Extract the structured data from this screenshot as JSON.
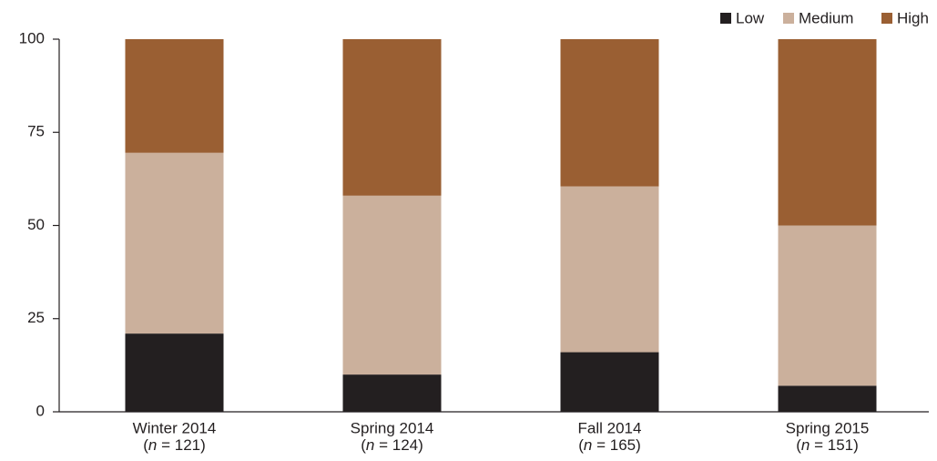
{
  "chart_data": {
    "type": "stacked_bar",
    "categories": [
      "Winter 2014",
      "Spring 2014",
      "Fall 2014",
      "Spring 2015"
    ],
    "category_notes": [
      "(n = 121)",
      "(n = 124)",
      "(n = 165)",
      "(n = 151)"
    ],
    "series": [
      {
        "name": "Low",
        "color": "#231f20",
        "values": [
          21,
          10,
          16,
          7
        ]
      },
      {
        "name": "Medium",
        "color": "#cbb09c",
        "values": [
          48.5,
          48,
          44.5,
          43
        ]
      },
      {
        "name": "High",
        "color": "#9a5f33",
        "values": [
          30.5,
          42,
          39.5,
          50
        ]
      }
    ],
    "ylim": [
      0,
      100
    ],
    "yticks": [
      0,
      25,
      50,
      75,
      100
    ],
    "grid": false,
    "legend": "top-right"
  }
}
